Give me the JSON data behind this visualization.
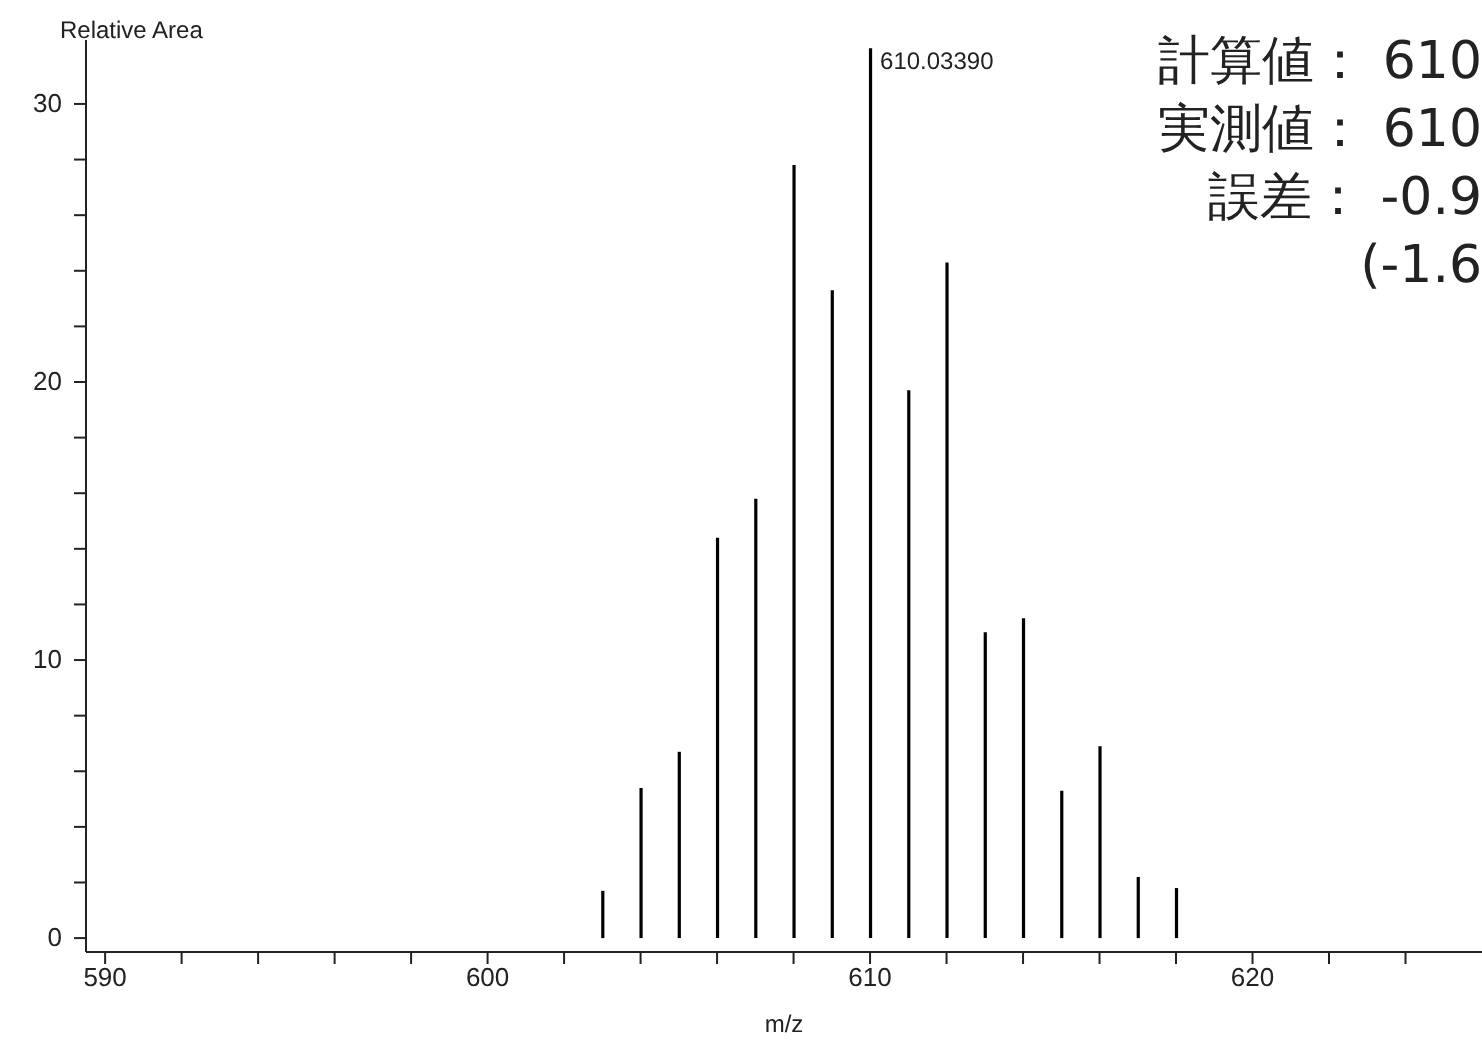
{
  "chart_data": {
    "type": "bar",
    "ylabel": "Relative Area",
    "xlabel": "m/z",
    "x": [
      603,
      604,
      605,
      606,
      607,
      608,
      609,
      610,
      611,
      612,
      613,
      614,
      615,
      616,
      617,
      618
    ],
    "values": [
      1.7,
      5.4,
      6.7,
      14.4,
      15.8,
      27.8,
      23.3,
      32,
      19.7,
      24.3,
      11,
      11.5,
      5.3,
      6.9,
      2.2,
      1.8
    ],
    "color": "#000000",
    "xlim": [
      589.5,
      626
    ],
    "xticks": [
      590,
      {
        "value": 592,
        "label": null
      },
      {
        "value": 594,
        "label": null
      },
      {
        "value": 596,
        "label": null
      },
      {
        "value": 598,
        "label": null
      },
      600,
      {
        "value": 602,
        "label": null
      },
      {
        "value": 604,
        "label": null
      },
      {
        "value": 606,
        "label": null
      },
      {
        "value": 608,
        "label": null
      },
      610,
      {
        "value": 612,
        "label": null
      },
      {
        "value": 614,
        "label": null
      },
      {
        "value": 616,
        "label": null
      },
      {
        "value": 618,
        "label": null
      },
      620,
      {
        "value": 622,
        "label": null
      },
      {
        "value": 624,
        "label": null
      }
    ],
    "ylim": [
      -0.5,
      32.3
    ],
    "yticks": [
      0,
      {
        "value": 2,
        "label": null
      },
      {
        "value": 4,
        "label": null
      },
      {
        "value": 6,
        "label": null
      },
      {
        "value": 8,
        "label": null
      },
      10,
      {
        "value": 12,
        "label": null
      },
      {
        "value": 14,
        "label": null
      },
      {
        "value": 16,
        "label": null
      },
      {
        "value": 18,
        "label": null
      },
      20,
      {
        "value": 22,
        "label": null
      },
      {
        "value": 24,
        "label": null
      },
      {
        "value": 26,
        "label": null
      },
      {
        "value": 28,
        "label": null
      },
      30
    ],
    "annotations": [
      {
        "text": "610.03390",
        "x": 610,
        "y": 32
      },
      "計算値： 610",
      "実測値： 610",
      "誤差： -0.9",
      "(-1.6"
    ],
    "grid": false,
    "legend": false
  }
}
